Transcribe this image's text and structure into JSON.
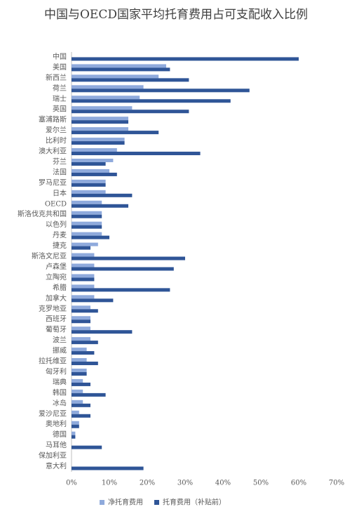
{
  "chart_data": {
    "type": "hbar",
    "title": "中国与OECD国家平均托育费用占可支配收入比例",
    "categories": [
      "中国",
      "美国",
      "新西兰",
      "荷兰",
      "瑞士",
      "英国",
      "塞浦路斯",
      "爱尔兰",
      "比利时",
      "澳大利亚",
      "芬兰",
      "法国",
      "罗马尼亚",
      "日本",
      "OECD",
      "斯洛伐克共和国",
      "以色列",
      "丹麦",
      "捷克",
      "斯洛文尼亚",
      "卢森堡",
      "立陶宛",
      "希腊",
      "加拿大",
      "克罗地亚",
      "西班牙",
      "葡萄牙",
      "波兰",
      "挪威",
      "拉托维亚",
      "匈牙利",
      "瑞典",
      "韩国",
      "冰岛",
      "爱沙尼亚",
      "奥地利",
      "德国",
      "马耳他",
      "保加利亚",
      "意大利"
    ],
    "series": [
      {
        "name": "净托育费用",
        "color": "#8faadc",
        "values": [
          0,
          25,
          23,
          19,
          18,
          16,
          15,
          15,
          14,
          12,
          11,
          10,
          9,
          9,
          8,
          8,
          8,
          8,
          7,
          6,
          6,
          6,
          6,
          6,
          5,
          5,
          5,
          5,
          4,
          4,
          4,
          3,
          3,
          3,
          2,
          2,
          1,
          0,
          0,
          0
        ]
      },
      {
        "name": "托育费用（补贴前）",
        "color": "#2f5597",
        "values": [
          60,
          26,
          31,
          47,
          42,
          31,
          15,
          23,
          14,
          34,
          9,
          12,
          9,
          16,
          15,
          8,
          8,
          10,
          5,
          30,
          27,
          6,
          26,
          11,
          7,
          5,
          16,
          7,
          6,
          7,
          4,
          5,
          9,
          5,
          5,
          2,
          1,
          8,
          0,
          19
        ]
      }
    ],
    "xlim": [
      0,
      70
    ],
    "xticks": [
      {
        "value": 0,
        "label": "0%"
      },
      {
        "value": 10,
        "label": "10%"
      },
      {
        "value": 20,
        "label": "20%"
      },
      {
        "value": 30,
        "label": "30%"
      },
      {
        "value": 40,
        "label": "40%"
      },
      {
        "value": 50,
        "label": "50%"
      },
      {
        "value": 60,
        "label": "60%"
      },
      {
        "value": 70,
        "label": "70%"
      }
    ],
    "grid": false,
    "legend": "bottom"
  }
}
